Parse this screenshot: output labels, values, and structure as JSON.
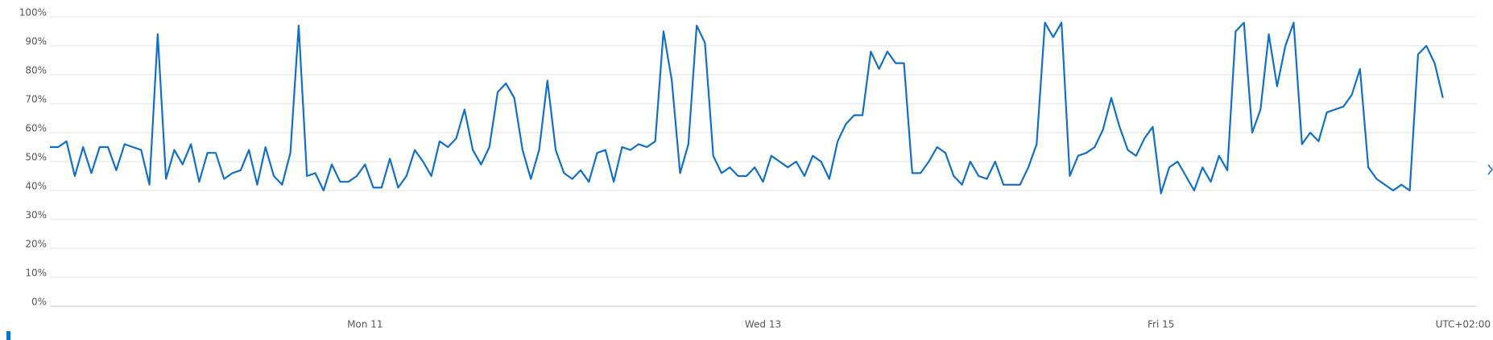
{
  "chart_data": {
    "type": "line",
    "x": [
      -38,
      -37,
      -36,
      -35,
      -34,
      -33,
      -32,
      -31,
      -30,
      -29,
      -28,
      -27,
      -26,
      -25,
      -24,
      -23,
      -22,
      -21,
      -20,
      -19,
      -18,
      -17,
      -16,
      -15,
      -14,
      -13,
      -12,
      -11,
      -10,
      -9,
      -8,
      -7,
      -6,
      -5,
      -4,
      -3,
      -2,
      -1,
      0,
      1,
      2,
      3,
      4,
      5,
      6,
      7,
      8,
      9,
      10,
      11,
      12,
      13,
      14,
      15,
      16,
      17,
      18,
      19,
      20,
      21,
      22,
      23,
      24,
      25,
      26,
      27,
      28,
      29,
      30,
      31,
      32,
      33,
      34,
      35,
      36,
      37,
      38,
      39,
      40,
      41,
      42,
      43,
      44,
      45,
      46,
      47,
      48,
      49,
      50,
      51,
      52,
      53,
      54,
      55,
      56,
      57,
      58,
      59,
      60,
      61,
      62,
      63,
      64,
      65,
      66,
      67,
      68,
      69,
      70,
      71,
      72,
      73,
      74,
      75,
      76,
      77,
      78,
      79,
      80,
      81,
      82,
      83,
      84,
      85,
      86,
      87,
      88,
      89,
      90,
      91,
      92,
      93,
      94,
      95,
      96,
      97,
      98,
      99,
      100,
      101,
      102,
      103,
      104,
      105,
      106,
      107,
      108,
      109,
      110,
      111,
      112,
      113,
      114,
      115,
      116,
      117,
      118,
      119,
      120,
      121,
      122,
      123,
      124,
      125,
      126,
      127,
      128,
      129,
      130
    ],
    "series": [
      {
        "color": "#1170c4",
        "values": [
          55,
          55,
          57,
          45,
          55,
          46,
          55,
          55,
          47,
          56,
          55,
          54,
          42,
          94,
          44,
          54,
          49,
          56,
          43,
          53,
          53,
          44,
          46,
          47,
          54,
          42,
          55,
          45,
          42,
          53,
          97,
          45,
          46,
          40,
          49,
          43,
          43,
          45,
          49,
          41,
          41,
          51,
          41,
          45,
          54,
          50,
          45,
          57,
          55,
          58,
          68,
          54,
          49,
          55,
          74,
          77,
          72,
          54,
          44,
          54,
          78,
          54,
          46,
          44,
          47,
          43,
          53,
          54,
          43,
          55,
          54,
          56,
          55,
          57,
          95,
          78,
          46,
          56,
          97,
          91,
          52,
          46,
          48,
          45,
          45,
          48,
          43,
          52,
          50,
          48,
          50,
          45,
          52,
          50,
          44,
          57,
          63,
          66,
          66,
          88,
          82,
          88,
          84,
          84,
          46,
          46,
          50,
          55,
          53,
          45,
          42,
          50,
          45,
          44,
          50,
          42,
          42,
          42,
          48,
          56,
          98,
          93,
          98,
          45,
          52,
          53,
          55,
          61,
          72,
          62,
          54,
          52,
          58,
          62,
          39,
          48,
          50,
          45,
          40,
          48,
          43,
          52,
          47,
          95,
          98,
          60,
          68,
          94,
          76,
          90,
          98,
          56,
          60,
          57,
          67,
          68,
          69,
          73,
          82,
          48,
          44,
          42,
          40,
          42,
          40,
          87,
          90,
          84,
          72
        ]
      }
    ],
    "xlim": [
      -38,
      134
    ],
    "xticks": [
      {
        "value": 0,
        "label": "Mon 11"
      },
      {
        "value": 48,
        "label": "Wed 13"
      },
      {
        "value": 96,
        "label": "Fri 15"
      }
    ],
    "ylim": [
      0,
      100
    ],
    "yticks": [
      {
        "value": 0,
        "label": "0%"
      },
      {
        "value": 10,
        "label": "10%"
      },
      {
        "value": 20,
        "label": "20%"
      },
      {
        "value": 30,
        "label": "30%"
      },
      {
        "value": 40,
        "label": "40%"
      },
      {
        "value": 50,
        "label": "50%"
      },
      {
        "value": 60,
        "label": "60%"
      },
      {
        "value": 70,
        "label": "70%"
      },
      {
        "value": 80,
        "label": "80%"
      },
      {
        "value": 90,
        "label": "90%"
      },
      {
        "value": 100,
        "label": "100%"
      }
    ],
    "grid": true,
    "timezone_label": "UTC+02:00"
  }
}
